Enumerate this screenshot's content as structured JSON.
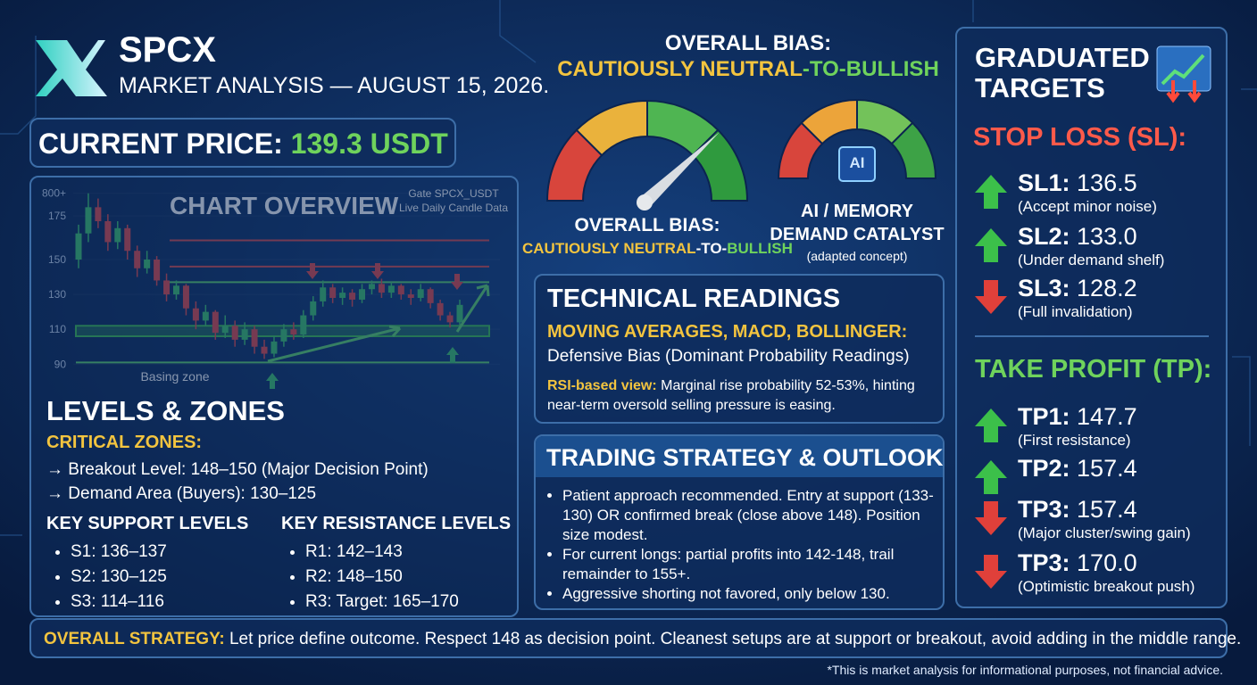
{
  "header": {
    "title": "SPCX",
    "subtitle": "MARKET ANALYSIS — AUGUST 15, 2026."
  },
  "current_price": {
    "label": "CURRENT PRICE:",
    "value": "139.3 USDT"
  },
  "bias": {
    "heading": "OVERALL BIAS:",
    "parts": [
      "CAUTIOUSLY NEUTRAL",
      "-TO-",
      "BULLISH"
    ]
  },
  "catalyst": {
    "icon": "AI",
    "lines": [
      "AI / MEMORY",
      "DEMAND CATALYST"
    ],
    "note": "(adapted concept)"
  },
  "chart_data": {
    "type": "candlestick",
    "title": "CHART OVERVIEW",
    "source": [
      "Gate SPCX_USDT",
      "Live Daily Candle Data"
    ],
    "annotation": "Basing zone",
    "ylim": [
      84,
      194
    ],
    "yticks": [
      90,
      110,
      130,
      150,
      175,
      {
        "value": 188,
        "label": "800+"
      }
    ],
    "open": [
      150,
      165,
      180,
      172,
      160,
      168,
      155,
      145,
      150,
      138,
      130,
      135,
      122,
      115,
      120,
      108,
      112,
      104,
      110,
      100,
      96,
      103,
      110,
      107,
      118,
      126,
      134,
      128,
      131,
      127,
      133,
      136,
      131,
      135,
      130,
      128,
      133,
      125,
      118,
      114
    ],
    "high": [
      170,
      188,
      185,
      176,
      172,
      170,
      158,
      155,
      152,
      142,
      138,
      136,
      126,
      124,
      121,
      118,
      115,
      114,
      112,
      104,
      106,
      113,
      114,
      121,
      129,
      138,
      136,
      134,
      133,
      136,
      138,
      139,
      137,
      136,
      133,
      136,
      134,
      127,
      120,
      127
    ],
    "low": [
      145,
      160,
      168,
      155,
      156,
      150,
      140,
      142,
      135,
      126,
      127,
      118,
      110,
      112,
      104,
      105,
      100,
      101,
      96,
      93,
      94,
      100,
      104,
      105,
      115,
      123,
      125,
      124,
      123,
      125,
      130,
      128,
      128,
      127,
      124,
      126,
      122,
      115,
      111,
      112
    ],
    "close": [
      165,
      180,
      172,
      160,
      168,
      155,
      145,
      150,
      138,
      130,
      135,
      122,
      115,
      120,
      108,
      112,
      104,
      110,
      100,
      96,
      103,
      110,
      107,
      118,
      126,
      134,
      128,
      131,
      127,
      133,
      136,
      131,
      135,
      130,
      128,
      133,
      125,
      118,
      114,
      124
    ],
    "up_color": "#3ec36a",
    "down_color": "#e04848",
    "lines": [
      {
        "value": 161,
        "color": "#d94a4a"
      },
      {
        "value": 146,
        "color": "#d94a4a"
      },
      {
        "value": 137,
        "color": "#5fd36a"
      },
      {
        "value": 91,
        "color": "#5fd36a"
      }
    ],
    "band": {
      "range": [
        106,
        112
      ],
      "color": "#3fbf4f"
    }
  },
  "levels": {
    "title": "LEVELS & ZONES",
    "critical_title": "CRITICAL ZONES:",
    "critical_items": [
      "→ Breakout Level: 148–150 (Major Decision Point)",
      "→ Demand Area (Buyers): 130–125"
    ],
    "support_title": "KEY SUPPORT LEVELS",
    "support_items": [
      "S1: 136–137",
      "S2: 130–125",
      "S3: 114–116"
    ],
    "resistance_title": "KEY RESISTANCE LEVELS",
    "resistance_items": [
      "R1: 142–143",
      "R2: 148–150",
      "R3: Target: 165–170"
    ]
  },
  "technical": {
    "title": "TECHNICAL READINGS",
    "subtitle": "MOVING AVERAGES, MACD, BOLLINGER:",
    "text": "Defensive Bias (Dominant Probability Readings)",
    "rsi_label": "RSI-based view:",
    "rsi_text": "Marginal rise probability 52-53%, hinting near-term oversold selling pressure is easing."
  },
  "strategy": {
    "title": "TRADING STRATEGY & OUTLOOK",
    "items": [
      "Patient approach recommended. Entry at support (133-130) OR confirmed break (close above 148). Position size modest.",
      "For current longs: partial profits into 142-148, trail remainder to 155+.",
      "Aggressive shorting not favored, only below 130."
    ]
  },
  "targets": {
    "title": "GRADUATED TARGETS",
    "sl_title": "STOP LOSS (SL):",
    "tp_title": "TAKE PROFIT (TP):",
    "up_color": "#3cc04a",
    "down_color": "#e0403a",
    "sl": [
      {
        "dir": "up",
        "label": "SL1:",
        "value": "136.5",
        "note": "(Accept minor noise)"
      },
      {
        "dir": "up",
        "label": "SL2:",
        "value": "133.0",
        "note": "(Under demand shelf)"
      },
      {
        "dir": "down",
        "label": "SL3:",
        "value": "128.2",
        "note": "(Full invalidation)"
      }
    ],
    "tp": [
      {
        "dir": "up",
        "label": "TP1:",
        "value": "147.7",
        "note": "(First resistance)"
      },
      {
        "dir": "up",
        "label": "TP2:",
        "value": "157.4"
      },
      {
        "dir": "down",
        "label": "TP3:",
        "value": "157.4",
        "note": "(Major cluster/swing gain)"
      },
      {
        "dir": "down",
        "label": "TP3:",
        "value": "170.0",
        "note": "(Optimistic breakout push)"
      }
    ]
  },
  "footer": {
    "label": "OVERALL STRATEGY:",
    "text": "Let price define outcome. Respect 148 as decision point. Cleanest setups are at support or breakout, avoid adding in the middle range.",
    "disclaimer": "*This is market analysis for informational purposes, not financial advice."
  }
}
